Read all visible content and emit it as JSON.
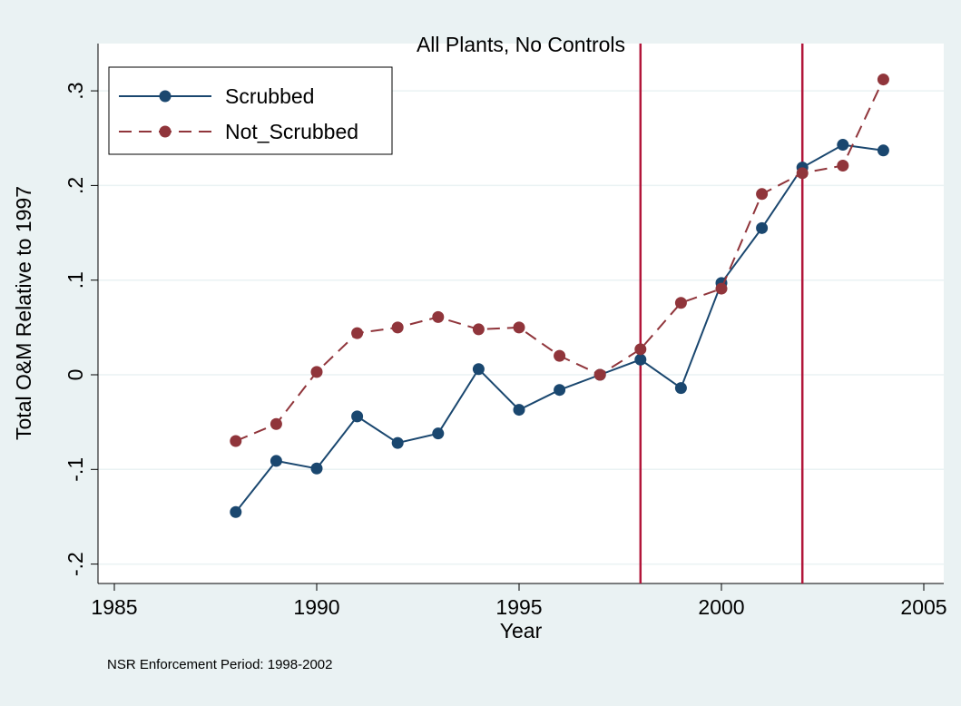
{
  "chart_data": {
    "type": "line",
    "title": "All Plants, No Controls",
    "xlabel": "Year",
    "ylabel": "Total O&M Relative to 1997",
    "note": "NSR Enforcement Period: 1998-2002",
    "xlim": [
      1985,
      2005
    ],
    "ylim": [
      -0.2,
      0.3
    ],
    "x_ticks": [
      1985,
      1990,
      1995,
      2000,
      2005
    ],
    "y_ticks": [
      -0.2,
      -0.1,
      0,
      0.1,
      0.2,
      0.3
    ],
    "x_tick_labels": [
      "1985",
      "1990",
      "1995",
      "2000",
      "2005"
    ],
    "y_tick_labels": [
      "-.2",
      "-.1",
      "0",
      ".1",
      ".2",
      ".3"
    ],
    "grid": "horizontal",
    "legend_position": "top-left",
    "vlines": [
      1998,
      2002
    ],
    "vline_color": "#b2163a",
    "x": [
      1988,
      1989,
      1990,
      1991,
      1992,
      1993,
      1994,
      1995,
      1996,
      1997,
      1998,
      1999,
      2000,
      2001,
      2002,
      2003,
      2004
    ],
    "series": [
      {
        "name": "Scrubbed",
        "color": "#1a476f",
        "style": "solid",
        "values": [
          -0.145,
          -0.091,
          -0.099,
          -0.044,
          -0.072,
          -0.062,
          0.006,
          -0.037,
          -0.016,
          0.0,
          0.016,
          -0.014,
          0.097,
          0.155,
          0.219,
          0.243,
          0.237
        ]
      },
      {
        "name": "Not_Scrubbed",
        "color": "#90353b",
        "style": "dashed",
        "values": [
          -0.07,
          -0.052,
          0.003,
          0.044,
          0.05,
          0.061,
          0.048,
          0.05,
          0.02,
          0.0,
          0.027,
          0.076,
          0.091,
          0.191,
          0.213,
          0.221,
          0.312
        ]
      }
    ]
  }
}
